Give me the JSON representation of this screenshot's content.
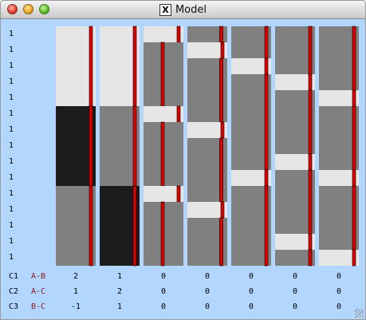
{
  "window": {
    "title": "Model",
    "app_icon": "x11-icon"
  },
  "colors": {
    "background": "#b3d6fe",
    "light": "#e6e6e6",
    "mid": "#808080",
    "dark": "#1c1c1c",
    "marker": "#e00000"
  },
  "row_labels": [
    "1",
    "1",
    "1",
    "1",
    "1",
    "1",
    "1",
    "1",
    "1",
    "1",
    "1",
    "1",
    "1",
    "1",
    "1"
  ],
  "columns": [
    {
      "segments": [
        [
          "light",
          5
        ],
        [
          "dark",
          5
        ],
        [
          "mid",
          5
        ]
      ],
      "marker_frac": 0.88
    },
    {
      "segments": [
        [
          "light",
          5
        ],
        [
          "mid",
          5
        ],
        [
          "dark",
          5
        ]
      ],
      "marker_frac": 0.88
    },
    {
      "segments": [
        [
          "light",
          1
        ],
        [
          "mid",
          4
        ],
        [
          "light",
          1
        ],
        [
          "mid",
          4
        ],
        [
          "light",
          1
        ],
        [
          "mid",
          4
        ]
      ],
      "marker_frac": 0.48
    },
    {
      "segments": [
        [
          "mid",
          1
        ],
        [
          "light",
          1
        ],
        [
          "mid",
          4
        ],
        [
          "light",
          1
        ],
        [
          "mid",
          4
        ],
        [
          "light",
          1
        ],
        [
          "mid",
          3
        ]
      ],
      "marker_frac": 0.85
    },
    {
      "segments": [
        [
          "mid",
          2
        ],
        [
          "light",
          1
        ],
        [
          "mid",
          6
        ],
        [
          "light",
          1
        ],
        [
          "mid",
          5
        ]
      ],
      "marker_frac": 0.88
    },
    {
      "segments": [
        [
          "mid",
          3
        ],
        [
          "light",
          1
        ],
        [
          "mid",
          4
        ],
        [
          "light",
          1
        ],
        [
          "mid",
          4
        ],
        [
          "light",
          1
        ],
        [
          "mid",
          1
        ]
      ],
      "marker_frac": 0.88
    },
    {
      "segments": [
        [
          "mid",
          4
        ],
        [
          "light",
          1
        ],
        [
          "mid",
          4
        ],
        [
          "light",
          1
        ],
        [
          "mid",
          4
        ],
        [
          "light",
          1
        ]
      ],
      "marker_frac": 0.88
    }
  ],
  "constraints": [
    {
      "name": "C1",
      "pair": "A-B",
      "values": [
        "2",
        "1",
        "0",
        "0",
        "0",
        "0",
        "0"
      ]
    },
    {
      "name": "C2",
      "pair": "A-C",
      "values": [
        "1",
        "2",
        "0",
        "0",
        "0",
        "0",
        "0"
      ]
    },
    {
      "name": "C3",
      "pair": "B-C",
      "values": [
        "-1",
        "1",
        "0",
        "0",
        "0",
        "0",
        "0"
      ]
    }
  ]
}
